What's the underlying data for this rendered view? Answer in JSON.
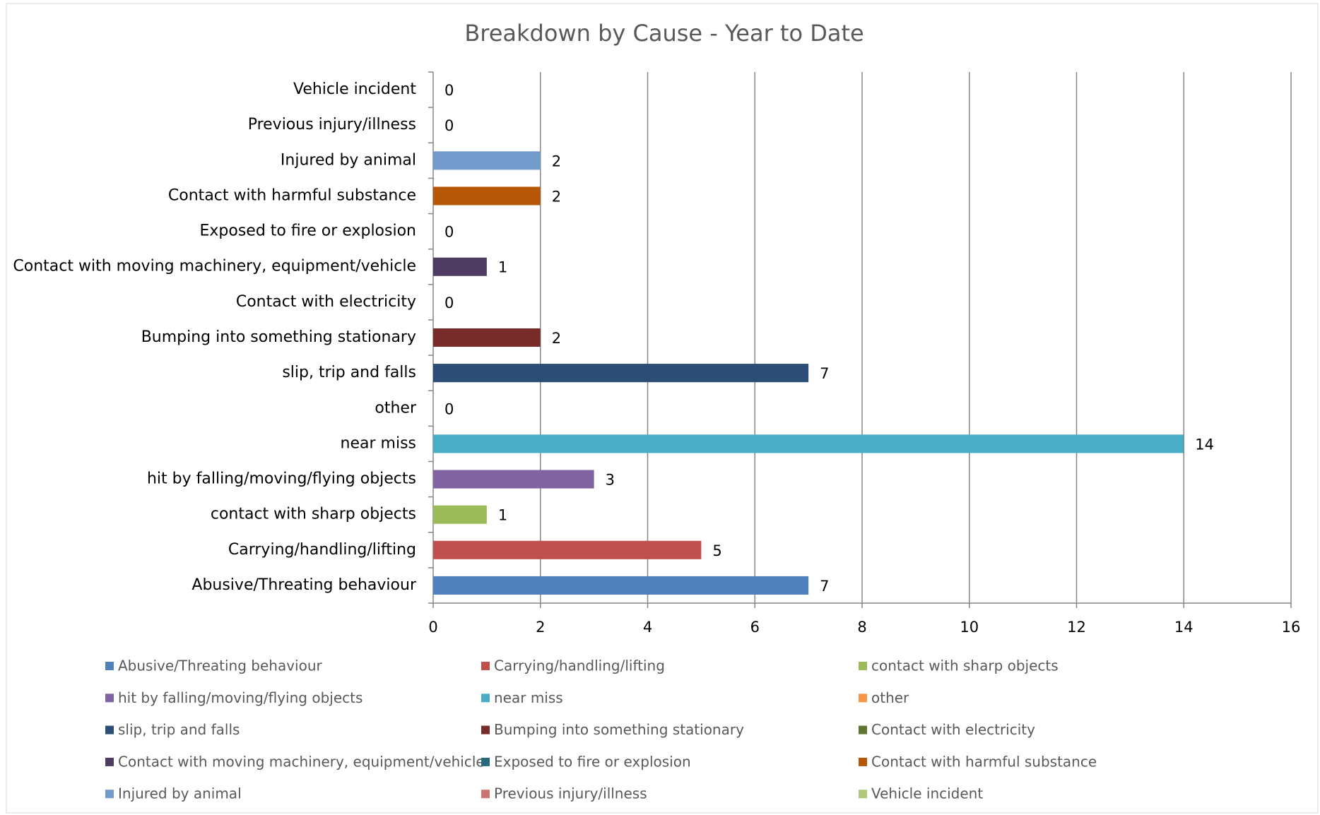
{
  "chart_data": {
    "type": "bar",
    "orientation": "horizontal",
    "title": "Breakdown by Cause - Year to Date",
    "categories": [
      "Abusive/Threating behaviour",
      "Carrying/handling/lifting",
      "contact with sharp objects",
      "hit by falling/moving/flying objects",
      "near miss",
      "other",
      "slip, trip and falls",
      "Bumping into something stationary",
      "Contact with electricity",
      "Contact with moving machinery, equipment/vehicle",
      "Exposed to fire or explosion",
      "Contact with harmful substance",
      "Injured by animal",
      "Previous injury/illness",
      "Vehicle incident"
    ],
    "values": [
      7,
      5,
      1,
      3,
      14,
      0,
      7,
      2,
      0,
      1,
      0,
      2,
      2,
      0,
      0
    ],
    "colors": [
      "#4f81bd",
      "#c0504d",
      "#9bbb59",
      "#8064a2",
      "#4bacc6",
      "#f79646",
      "#2c4d75",
      "#772c2a",
      "#5f7530",
      "#4d3b62",
      "#276a7c",
      "#b65708",
      "#729aca",
      "#cd7371",
      "#afc97a"
    ],
    "xlim": [
      0,
      16
    ],
    "xticks": [
      0,
      2,
      4,
      6,
      8,
      10,
      12,
      14,
      16
    ],
    "grid": true,
    "legend": "bottom"
  }
}
